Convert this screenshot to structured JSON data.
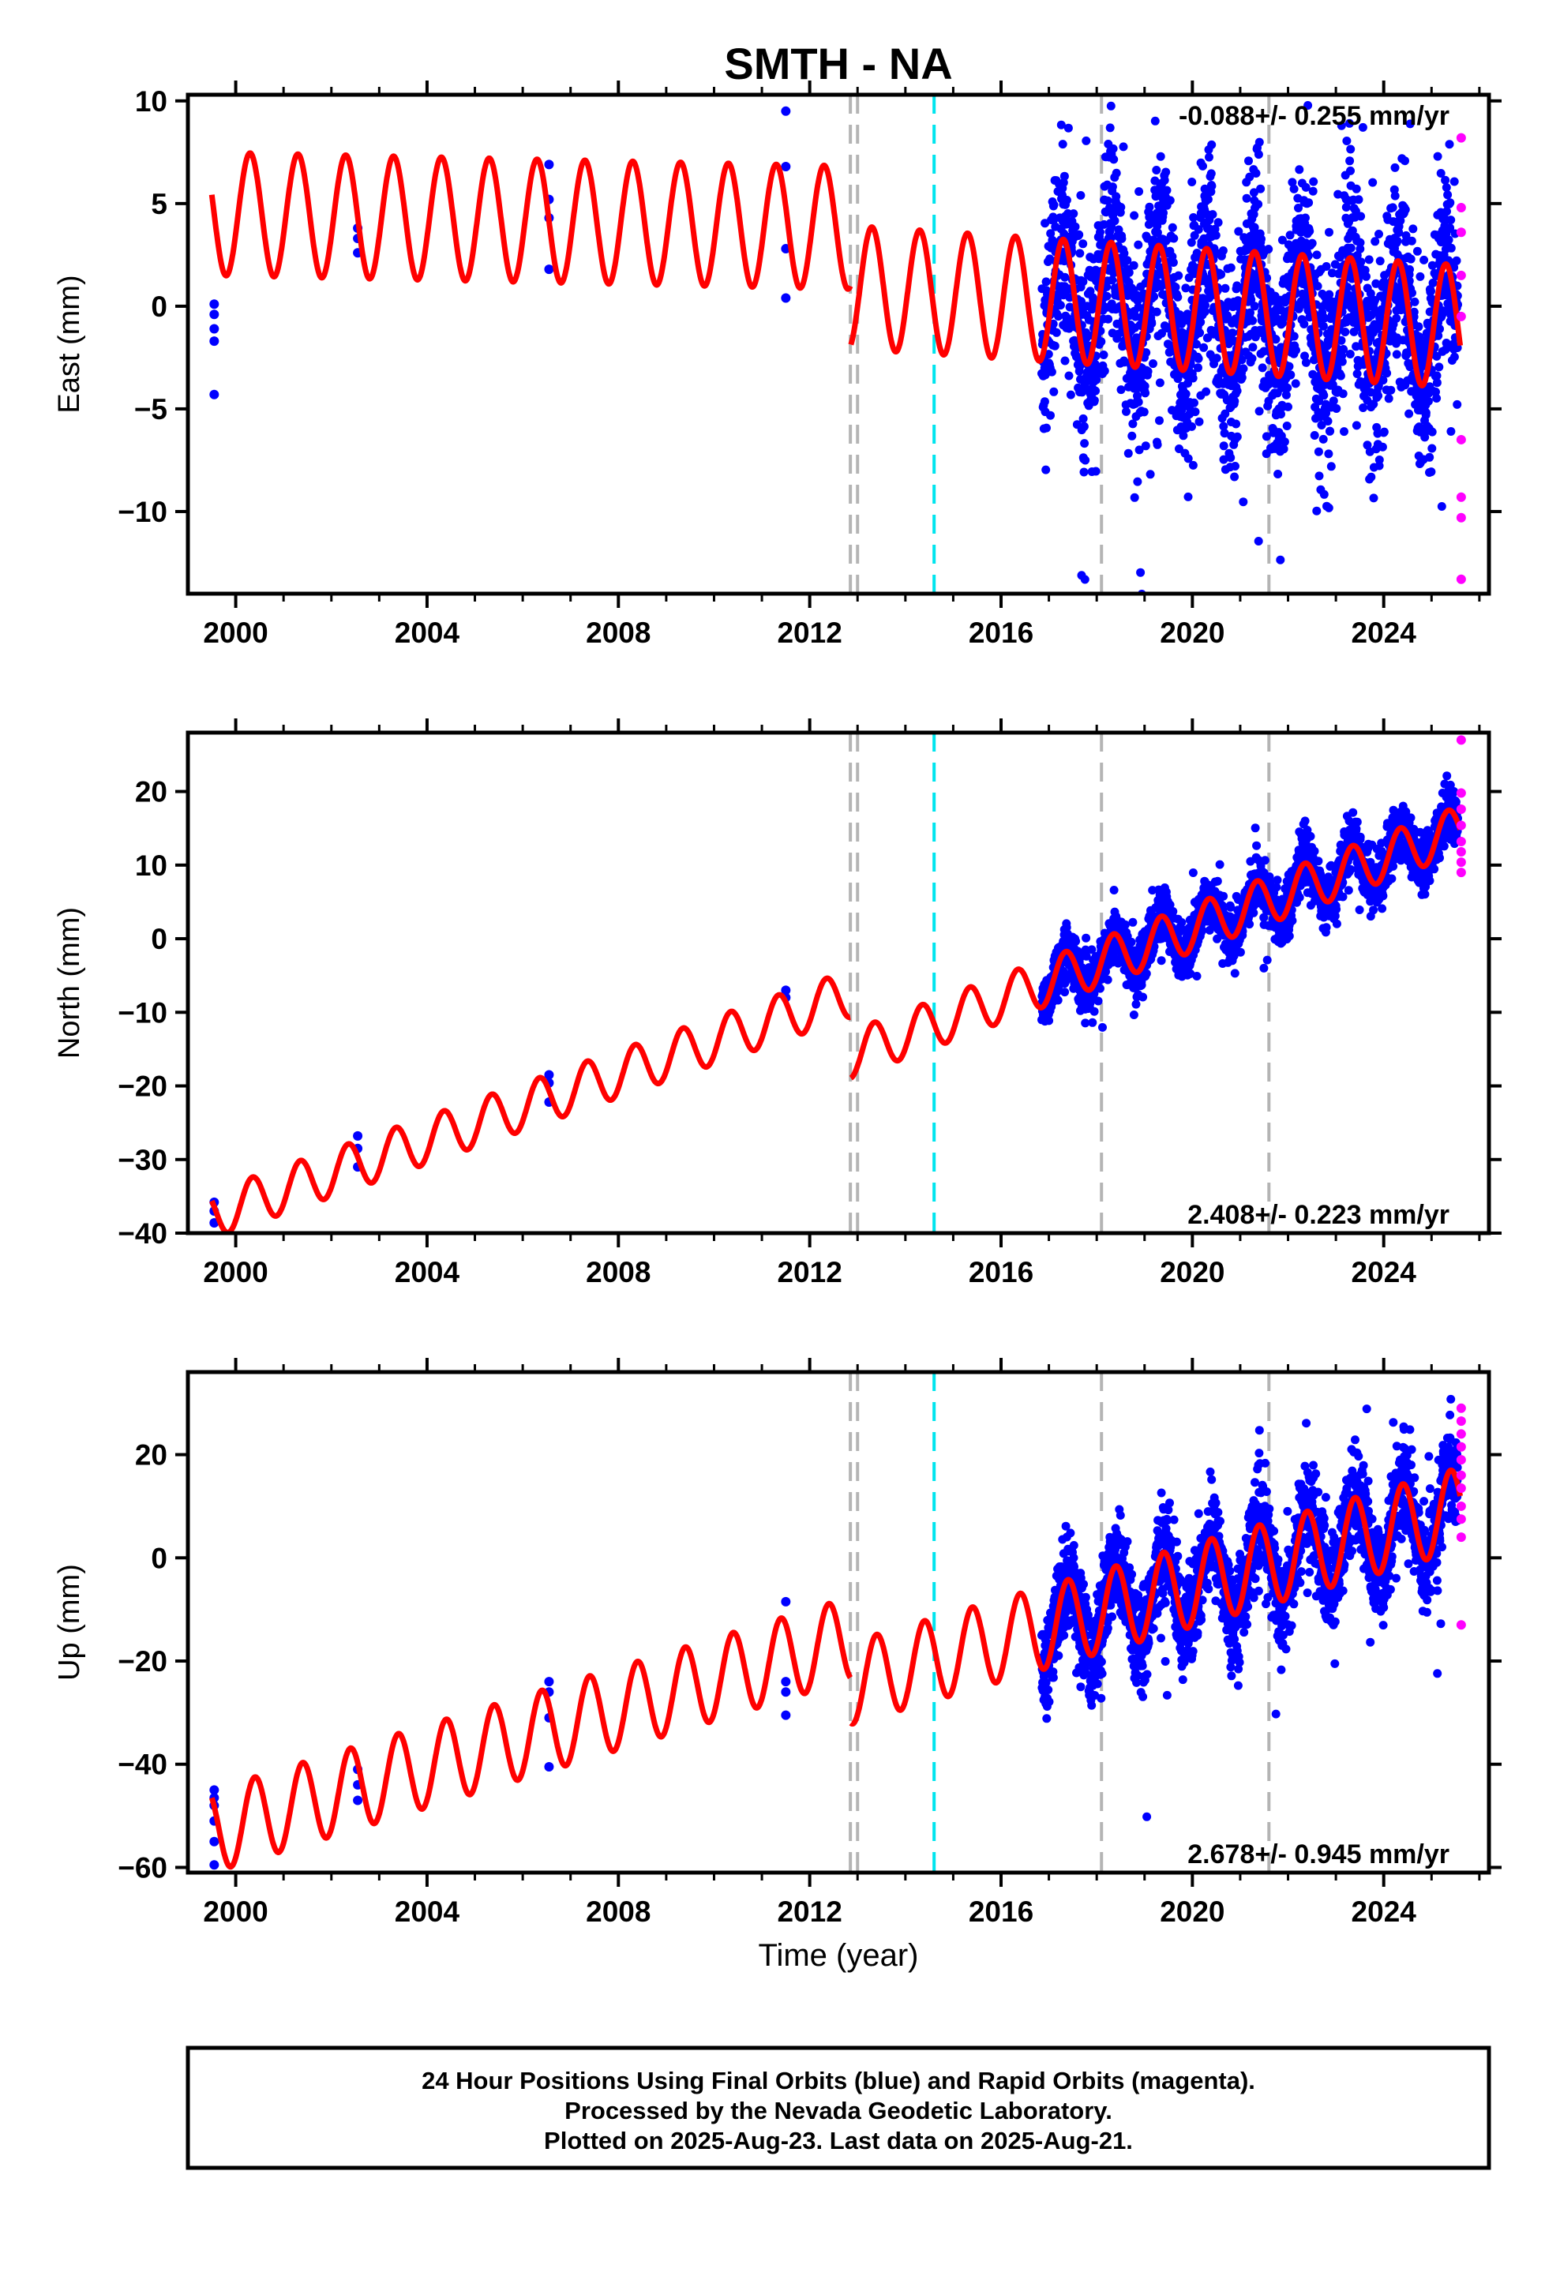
{
  "title": "SMTH - NA",
  "colors": {
    "final": "#0000ff",
    "rapid": "#ff00ff",
    "model": "#ff0000",
    "offset_gray": "#b4b4b4",
    "offset_cyan": "#00e5ee",
    "frame": "#000000"
  },
  "chart_data": [
    {
      "type": "scatter",
      "component": "East",
      "ylabel": "East (mm)",
      "xlabel": "",
      "xlim": [
        1999.0,
        2026.2
      ],
      "ylim": [
        -14,
        10.3
      ],
      "xticks": [
        2000,
        2004,
        2008,
        2012,
        2016,
        2020,
        2024
      ],
      "yticks": [
        10,
        5,
        0,
        -5,
        -10
      ],
      "ytick_labels": [
        "10",
        "5",
        "0",
        "−5",
        "−10"
      ],
      "rate_label": "-0.088+/- 0.255 mm/yr",
      "rate_position": "top-right",
      "model": {
        "start": 1999.5,
        "end": 2025.6,
        "base": [
          4.5,
          0.0
        ],
        "slope_before": -0.05,
        "slope_after": -0.15,
        "annual_amp": 3.0,
        "semi_amp": 0.0,
        "phase": 0.05
      },
      "data_segment": {
        "start": 2016.85,
        "end": 2025.55,
        "noise": 2.4,
        "outlier_rate": 0.03
      },
      "rapid": [
        {
          "x": 2025.62,
          "y": 8.2
        },
        {
          "x": 2025.62,
          "y": 4.8
        },
        {
          "x": 2025.62,
          "y": 3.6
        },
        {
          "x": 2025.62,
          "y": 1.5
        },
        {
          "x": 2025.62,
          "y": -0.5
        },
        {
          "x": 2025.62,
          "y": -6.5
        },
        {
          "x": 2025.62,
          "y": -9.3
        },
        {
          "x": 2025.62,
          "y": -10.3
        },
        {
          "x": 2025.62,
          "y": -13.3
        }
      ],
      "early_points": [
        {
          "x": 1999.55,
          "y": 0.1
        },
        {
          "x": 1999.55,
          "y": -0.4
        },
        {
          "x": 1999.55,
          "y": -1.1
        },
        {
          "x": 1999.55,
          "y": -1.7
        },
        {
          "x": 1999.55,
          "y": -4.3
        },
        {
          "x": 2002.55,
          "y": 3.8
        },
        {
          "x": 2002.55,
          "y": 3.3
        },
        {
          "x": 2002.55,
          "y": 2.6
        },
        {
          "x": 2006.55,
          "y": 6.9
        },
        {
          "x": 2006.55,
          "y": 5.2
        },
        {
          "x": 2006.55,
          "y": 4.3
        },
        {
          "x": 2006.55,
          "y": 1.8
        },
        {
          "x": 2011.5,
          "y": 9.5
        },
        {
          "x": 2011.5,
          "y": 6.8
        },
        {
          "x": 2011.5,
          "y": 2.8
        },
        {
          "x": 2011.5,
          "y": 0.4
        }
      ],
      "step_2013": -3.0
    },
    {
      "type": "scatter",
      "component": "North",
      "ylabel": "North (mm)",
      "xlabel": "",
      "xlim": [
        1999.0,
        2026.2
      ],
      "ylim": [
        -40,
        28
      ],
      "xticks": [
        2000,
        2004,
        2008,
        2012,
        2016,
        2020,
        2024
      ],
      "yticks": [
        20,
        10,
        0,
        -10,
        -20,
        -30,
        -40
      ],
      "ytick_labels": [
        "20",
        "10",
        "0",
        "−10",
        "−20",
        "−30",
        "−40"
      ],
      "rate_label": "2.408+/- 0.223 mm/yr",
      "rate_position": "bottom-right",
      "model": {
        "start": 1999.5,
        "end": 2025.6,
        "base": [
          -37.5,
          -1.0
        ],
        "slope_before": 2.25,
        "slope_after": 2.4,
        "annual_amp": 3.2,
        "semi_amp": 0.0,
        "phase": 0.1
      },
      "data_segment": {
        "start": 2016.85,
        "end": 2025.55,
        "noise": 1.8,
        "outlier_rate": 0.01
      },
      "rapid": [
        {
          "x": 2025.62,
          "y": 27.0
        },
        {
          "x": 2025.62,
          "y": 19.8
        },
        {
          "x": 2025.62,
          "y": 17.6
        },
        {
          "x": 2025.62,
          "y": 15.4
        },
        {
          "x": 2025.62,
          "y": 13.2
        },
        {
          "x": 2025.62,
          "y": 11.8
        },
        {
          "x": 2025.62,
          "y": 10.4
        },
        {
          "x": 2025.62,
          "y": 9.0
        }
      ],
      "early_points": [
        {
          "x": 1999.55,
          "y": -35.8
        },
        {
          "x": 1999.55,
          "y": -37.0
        },
        {
          "x": 1999.55,
          "y": -38.6
        },
        {
          "x": 2002.55,
          "y": -26.8
        },
        {
          "x": 2002.55,
          "y": -28.5
        },
        {
          "x": 2002.55,
          "y": -31.0
        },
        {
          "x": 2006.55,
          "y": -18.5
        },
        {
          "x": 2006.55,
          "y": -19.6
        },
        {
          "x": 2006.55,
          "y": -22.2
        },
        {
          "x": 2011.5,
          "y": -7.0
        },
        {
          "x": 2011.5,
          "y": -8.0
        }
      ],
      "step_2013": -3.5
    },
    {
      "type": "scatter",
      "component": "Up",
      "ylabel": "Up (mm)",
      "xlabel": "Time (year)",
      "xlim": [
        1999.0,
        2026.2
      ],
      "ylim": [
        -61,
        36
      ],
      "xticks": [
        2000,
        2004,
        2008,
        2012,
        2016,
        2020,
        2024
      ],
      "yticks": [
        20,
        0,
        -20,
        -40,
        -60
      ],
      "ytick_labels": [
        "20",
        "0",
        "−20",
        "−40",
        "−60"
      ],
      "rate_label": "2.678+/- 0.945 mm/yr",
      "rate_position": "bottom-right",
      "model": {
        "start": 1999.5,
        "end": 2025.6,
        "base": [
          -53.0,
          -8.0
        ],
        "slope_before": 2.8,
        "slope_after": 2.65,
        "annual_amp": 8.0,
        "semi_amp": 0.0,
        "phase": 0.15
      },
      "data_segment": {
        "start": 2016.85,
        "end": 2025.55,
        "noise": 4.8,
        "outlier_rate": 0.01
      },
      "rapid": [
        {
          "x": 2025.62,
          "y": 29.0
        },
        {
          "x": 2025.62,
          "y": 26.5
        },
        {
          "x": 2025.62,
          "y": 24.0
        },
        {
          "x": 2025.62,
          "y": 21.5
        },
        {
          "x": 2025.62,
          "y": 19.0
        },
        {
          "x": 2025.62,
          "y": 16.0
        },
        {
          "x": 2025.62,
          "y": 13.5
        },
        {
          "x": 2025.62,
          "y": 10.0
        },
        {
          "x": 2025.62,
          "y": 7.5
        },
        {
          "x": 2025.62,
          "y": 4.0
        },
        {
          "x": 2025.62,
          "y": -13.0
        }
      ],
      "early_points": [
        {
          "x": 1999.55,
          "y": -45.0
        },
        {
          "x": 1999.55,
          "y": -46.5
        },
        {
          "x": 1999.55,
          "y": -48.0
        },
        {
          "x": 1999.55,
          "y": -51.0
        },
        {
          "x": 1999.55,
          "y": -55.0
        },
        {
          "x": 1999.55,
          "y": -59.5
        },
        {
          "x": 2002.55,
          "y": -41.0
        },
        {
          "x": 2002.55,
          "y": -44.0
        },
        {
          "x": 2002.55,
          "y": -47.0
        },
        {
          "x": 2006.55,
          "y": -24.0
        },
        {
          "x": 2006.55,
          "y": -26.0
        },
        {
          "x": 2006.55,
          "y": -31.0
        },
        {
          "x": 2006.55,
          "y": -40.5
        },
        {
          "x": 2011.5,
          "y": -8.5
        },
        {
          "x": 2011.5,
          "y": -24.0
        },
        {
          "x": 2011.5,
          "y": -26.0
        },
        {
          "x": 2011.5,
          "y": -30.5
        }
      ],
      "step_2013": 0.0
    }
  ],
  "offsets": {
    "gray": [
      2012.85,
      2013.0,
      2018.1,
      2021.6
    ],
    "cyan": [
      2014.6
    ]
  },
  "footer": {
    "line1": "24 Hour Positions Using Final Orbits (blue) and Rapid Orbits (magenta).",
    "line2": "Processed by the Nevada Geodetic Laboratory.",
    "line3": "Plotted on 2025-Aug-23. Last data on 2025-Aug-21."
  }
}
